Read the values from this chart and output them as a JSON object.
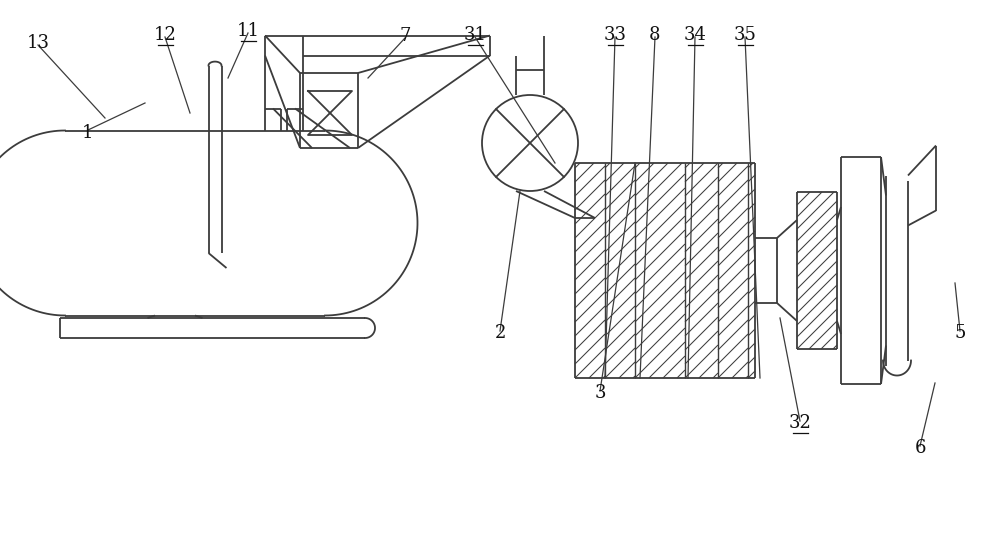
{
  "bg_color": "#ffffff",
  "line_color": "#3c3c3c",
  "figsize": [
    10.0,
    5.33
  ],
  "dpi": 100,
  "underlined": [
    "11",
    "12",
    "31",
    "32",
    "33",
    "34",
    "35"
  ]
}
